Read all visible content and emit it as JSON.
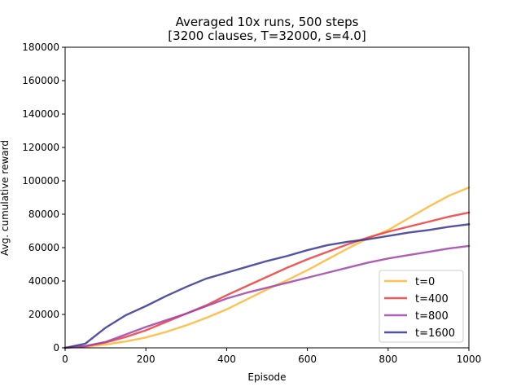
{
  "chart_data": {
    "type": "line",
    "title_line1": "Averaged 10x runs, 500 steps",
    "title_line2": "[3200 clauses, T=32000, s=4.0]",
    "xlabel": "Episode",
    "ylabel": "Avg. cumulative reward",
    "xlim": [
      0,
      1000
    ],
    "ylim": [
      0,
      180000
    ],
    "xticks": [
      0,
      200,
      400,
      600,
      800,
      1000
    ],
    "yticks": [
      0,
      20000,
      40000,
      60000,
      80000,
      100000,
      120000,
      140000,
      160000,
      180000
    ],
    "grid": false,
    "legend_position": "lower right",
    "series": [
      {
        "name": "t=0",
        "color": "#ffb734",
        "x": [
          0,
          50,
          100,
          150,
          200,
          250,
          300,
          350,
          400,
          450,
          500,
          550,
          600,
          650,
          700,
          750,
          800,
          850,
          900,
          950,
          1000
        ],
        "y": [
          0,
          600,
          2000,
          3800,
          6200,
          9500,
          13500,
          18000,
          23000,
          29000,
          35000,
          40500,
          46500,
          53000,
          59500,
          65500,
          70500,
          77500,
          84500,
          91000,
          96000
        ]
      },
      {
        "name": "t=400",
        "color": "#ee3c3c",
        "x": [
          0,
          50,
          100,
          150,
          200,
          250,
          300,
          350,
          400,
          450,
          500,
          550,
          600,
          650,
          700,
          750,
          800,
          850,
          900,
          950,
          1000
        ],
        "y": [
          0,
          1000,
          3200,
          6500,
          10500,
          15500,
          20500,
          25500,
          31500,
          37000,
          42500,
          48000,
          53000,
          57500,
          62000,
          66000,
          69500,
          72500,
          75500,
          78500,
          81000
        ]
      },
      {
        "name": "t=800",
        "color": "#a043a8",
        "x": [
          0,
          50,
          100,
          150,
          200,
          250,
          300,
          350,
          400,
          450,
          500,
          550,
          600,
          650,
          700,
          750,
          800,
          850,
          900,
          950,
          1000
        ],
        "y": [
          0,
          1000,
          3500,
          8000,
          12500,
          16500,
          20500,
          25000,
          29500,
          33000,
          36000,
          39000,
          42000,
          45000,
          48000,
          51000,
          53500,
          55500,
          57500,
          59500,
          61000
        ]
      },
      {
        "name": "t=1600",
        "color": "#353596",
        "x": [
          0,
          50,
          100,
          150,
          200,
          250,
          300,
          350,
          400,
          450,
          500,
          550,
          600,
          650,
          700,
          750,
          800,
          850,
          900,
          950,
          1000
        ],
        "y": [
          0,
          2500,
          12000,
          19500,
          25000,
          31000,
          36500,
          41500,
          45000,
          48500,
          52000,
          55000,
          58500,
          61500,
          63500,
          65000,
          67000,
          69000,
          70500,
          72500,
          74000
        ]
      }
    ]
  }
}
